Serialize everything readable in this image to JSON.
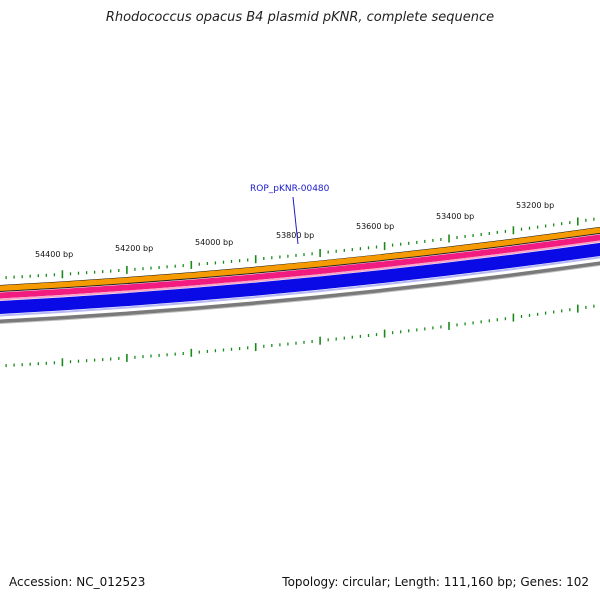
{
  "title": "Rhodococcus opacus B4 plasmid pKNR, complete sequence",
  "footer": {
    "accession": "Accession: NC_012523",
    "summary": "Topology: circular; Length: 111,160 bp; Genes: 102"
  },
  "map": {
    "tick_labels": [
      "54400 bp",
      "54200 bp",
      "54000 bp",
      "53800 bp",
      "53600 bp",
      "53400 bp",
      "53200 bp"
    ],
    "gene_label": "ROP_pKNR-00480",
    "colors": {
      "tick": "#1a8a1a",
      "gene_label": "#1a1acc",
      "track_orange": "#f59a00",
      "track_pink": "#f21b7f",
      "track_blue": "#0a0ae6",
      "track_gray": "#7a7a7a"
    }
  }
}
